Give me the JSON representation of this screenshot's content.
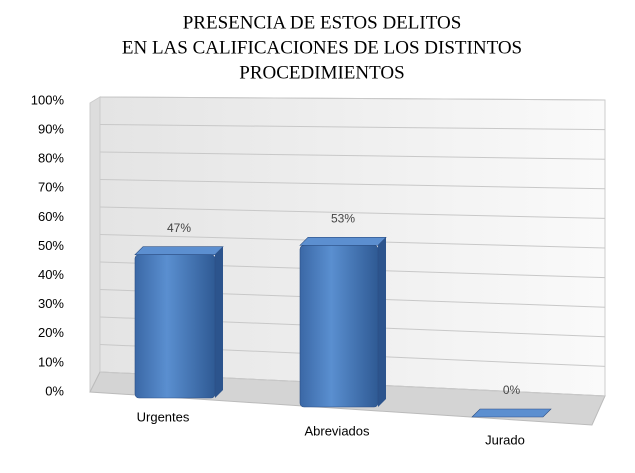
{
  "chart_data": {
    "type": "bar3d",
    "title": [
      "PRESENCIA DE ESTOS DELITOS",
      "EN LAS CALIFICACIONES DE LOS DISTINTOS",
      "PROCEDIMIENTOS"
    ],
    "categories": [
      "Urgentes",
      "Abreviados",
      "Jurado"
    ],
    "values": [
      47,
      53,
      0
    ],
    "value_labels": [
      "47%",
      "53%",
      "0%"
    ],
    "color": "#4a7ebb",
    "ylim": [
      0,
      100
    ],
    "yticks": [
      {
        "value": 0,
        "label": "0%"
      },
      {
        "value": 10,
        "label": "10%"
      },
      {
        "value": 20,
        "label": "20%"
      },
      {
        "value": 30,
        "label": "30%"
      },
      {
        "value": 40,
        "label": "40%"
      },
      {
        "value": 50,
        "label": "50%"
      },
      {
        "value": 60,
        "label": "60%"
      },
      {
        "value": 70,
        "label": "70%"
      },
      {
        "value": 80,
        "label": "80%"
      },
      {
        "value": 90,
        "label": "90%"
      },
      {
        "value": 100,
        "label": "100%"
      }
    ],
    "grid": true
  }
}
